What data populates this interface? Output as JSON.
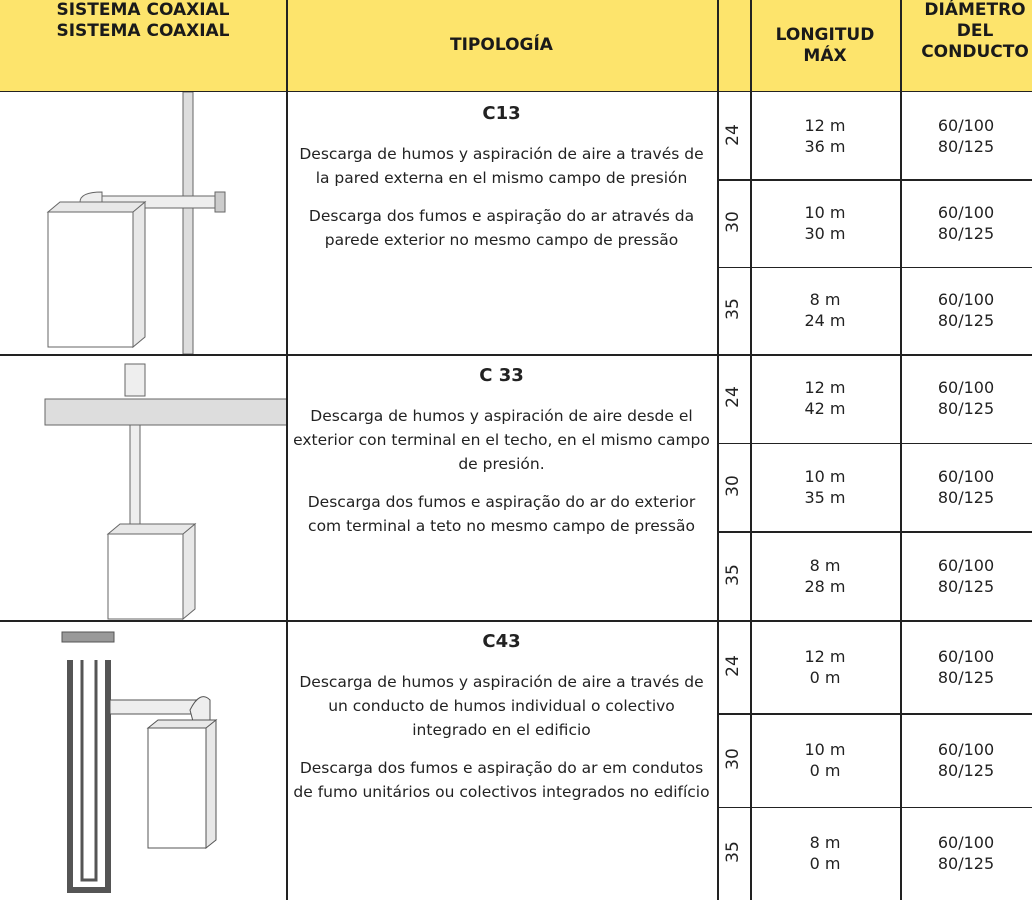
{
  "header": {
    "system": [
      "SISTEMA COAXIAL",
      "SISTEMA COAXIAL"
    ],
    "typology": "TIPOLOGÍA",
    "length": [
      "LONGITUD",
      "MÁX"
    ],
    "diameter": [
      "DIÁMETRO",
      "DEL",
      "CONDUCTO"
    ]
  },
  "rows": [
    {
      "code": "C13",
      "es": "Descarga de humos y aspiración de aire a través de la pared externa en el mismo campo de presión",
      "pt": "Descarga dos fumos e aspiração do ar através da parede exterior no mesmo campo de pressão",
      "models": [
        {
          "model": "24",
          "lengths": [
            "12 m",
            "36 m"
          ],
          "diameters": [
            "60/100",
            "80/125"
          ]
        },
        {
          "model": "30",
          "lengths": [
            "10 m",
            "30 m"
          ],
          "diameters": [
            "60/100",
            "80/125"
          ]
        },
        {
          "model": "35",
          "lengths": [
            "8 m",
            "24 m"
          ],
          "diameters": [
            "60/100",
            "80/125"
          ]
        }
      ]
    },
    {
      "code": "C 33",
      "es": "Descarga de humos y aspiración de aire desde el exterior con terminal en el techo, en el mismo campo de presión.",
      "pt": "Descarga dos fumos e aspiração do ar do exterior com terminal a teto no mesmo campo de pressão",
      "models": [
        {
          "model": "24",
          "lengths": [
            "12 m",
            "42 m"
          ],
          "diameters": [
            "60/100",
            "80/125"
          ]
        },
        {
          "model": "30",
          "lengths": [
            "10 m",
            "35 m"
          ],
          "diameters": [
            "60/100",
            "80/125"
          ]
        },
        {
          "model": "35",
          "lengths": [
            "8 m",
            "28 m"
          ],
          "diameters": [
            "60/100",
            "80/125"
          ]
        }
      ]
    },
    {
      "code": "C43",
      "es": "Descarga de humos y aspiración de aire a través de un conducto de humos individual o colectivo integrado en el edificio",
      "pt": "Descarga dos fumos e aspiração do ar em condutos de fumo unitários ou colectivos integrados no edifício",
      "models": [
        {
          "model": "24",
          "lengths": [
            "12 m",
            "0 m"
          ],
          "diameters": [
            "60/100",
            "80/125"
          ]
        },
        {
          "model": "30",
          "lengths": [
            "10 m",
            "0 m"
          ],
          "diameters": [
            "60/100",
            "80/125"
          ]
        },
        {
          "model": "35",
          "lengths": [
            "8 m",
            "0 m"
          ],
          "diameters": [
            "60/100",
            "80/125"
          ]
        }
      ]
    }
  ]
}
